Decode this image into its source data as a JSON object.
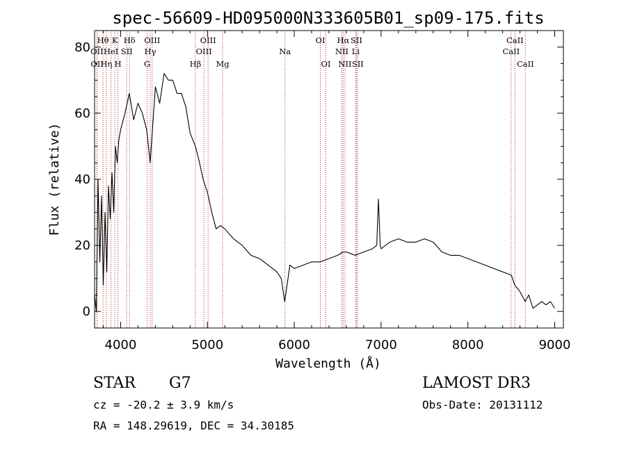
{
  "chart_data": {
    "type": "line",
    "title": "spec-56609-HD095000N333605B01_sp09-175.fits",
    "xlabel": "Wavelength (Å)",
    "ylabel": "Flux (relative)",
    "xlim": [
      3700,
      9100
    ],
    "ylim": [
      -5,
      85
    ],
    "xticks": [
      4000,
      5000,
      6000,
      7000,
      8000,
      9000
    ],
    "yticks": [
      0,
      20,
      40,
      60,
      80
    ],
    "xtick_labels": [
      "4000",
      "5000",
      "6000",
      "7000",
      "8000",
      "9000"
    ],
    "ytick_labels": [
      "0",
      "20",
      "40",
      "60",
      "80"
    ],
    "series": [
      {
        "name": "flux",
        "color": "#000000",
        "x": [
          3700,
          3720,
          3740,
          3760,
          3780,
          3800,
          3820,
          3840,
          3860,
          3880,
          3900,
          3920,
          3940,
          3960,
          3980,
          4000,
          4050,
          4100,
          4150,
          4200,
          4250,
          4300,
          4340,
          4400,
          4450,
          4500,
          4550,
          4600,
          4650,
          4700,
          4750,
          4800,
          4860,
          4900,
          4950,
          5000,
          5050,
          5100,
          5150,
          5200,
          5300,
          5400,
          5500,
          5600,
          5700,
          5800,
          5850,
          5890,
          5950,
          6000,
          6100,
          6200,
          6300,
          6400,
          6500,
          6560,
          6600,
          6700,
          6800,
          6900,
          6950,
          6970,
          6990,
          7000,
          7100,
          7200,
          7300,
          7400,
          7500,
          7600,
          7700,
          7800,
          7900,
          8000,
          8100,
          8200,
          8300,
          8400,
          8500,
          8540,
          8600,
          8660,
          8700,
          8750,
          8800,
          8850,
          8900,
          8950,
          9000
        ],
        "y": [
          5,
          0,
          40,
          15,
          35,
          8,
          30,
          12,
          38,
          28,
          42,
          30,
          50,
          45,
          52,
          55,
          60,
          66,
          58,
          63,
          60,
          55,
          45,
          68,
          63,
          72,
          70,
          70,
          66,
          66,
          62,
          54,
          50,
          46,
          40,
          36,
          30,
          25,
          26,
          25,
          22,
          20,
          17,
          16,
          14,
          12,
          10,
          3,
          14,
          13,
          14,
          15,
          15,
          16,
          17,
          18,
          18,
          17,
          18,
          19,
          20,
          34,
          20,
          19,
          21,
          22,
          21,
          21,
          22,
          21,
          18,
          17,
          17,
          16,
          15,
          14,
          13,
          12,
          11,
          8,
          6,
          3,
          5,
          1,
          2,
          3,
          2,
          3,
          1
        ]
      }
    ],
    "lines": [
      {
        "label": "Hθ",
        "x": 3797,
        "row": 0
      },
      {
        "label": "OII",
        "x": 3727,
        "row": 1
      },
      {
        "label": "OII",
        "x": 3729,
        "row": 2
      },
      {
        "label": "K",
        "x": 3934,
        "row": 0
      },
      {
        "label": "HeI",
        "x": 3889,
        "row": 1
      },
      {
        "label": "Hη",
        "x": 3835,
        "row": 2
      },
      {
        "label": "Hδ",
        "x": 4102,
        "row": 0
      },
      {
        "label": "SII",
        "x": 4070,
        "row": 1
      },
      {
        "label": "H",
        "x": 3969,
        "row": 2
      },
      {
        "label": "OIII",
        "x": 4363,
        "row": 0
      },
      {
        "label": "Hγ",
        "x": 4341,
        "row": 1
      },
      {
        "label": "G",
        "x": 4305,
        "row": 2
      },
      {
        "label": "OIII",
        "x": 5007,
        "row": 0
      },
      {
        "label": "OIII",
        "x": 4959,
        "row": 1
      },
      {
        "label": "Hβ",
        "x": 4861,
        "row": 2
      },
      {
        "label": "Mg",
        "x": 5175,
        "row": 2
      },
      {
        "label": "Na",
        "x": 5893,
        "row": 1
      },
      {
        "label": "OI",
        "x": 6300,
        "row": 0
      },
      {
        "label": "OI",
        "x": 6364,
        "row": 2
      },
      {
        "label": "Hα",
        "x": 6563,
        "row": 0
      },
      {
        "label": "SII",
        "x": 6716,
        "row": 0
      },
      {
        "label": "NII",
        "x": 6548,
        "row": 1
      },
      {
        "label": "Li",
        "x": 6708,
        "row": 1
      },
      {
        "label": "NII",
        "x": 6584,
        "row": 2
      },
      {
        "label": "SII",
        "x": 6731,
        "row": 2
      },
      {
        "label": "CaII",
        "x": 8542,
        "row": 0
      },
      {
        "label": "CaII",
        "x": 8498,
        "row": 1
      },
      {
        "label": "CaII",
        "x": 8662,
        "row": 2
      }
    ]
  },
  "info": {
    "object_class": "STAR",
    "subclass": "G7",
    "redshift": "cz = -20.2 ± 3.9 km/s",
    "coords": "RA = 148.29619, DEC =  34.30185",
    "survey": "LAMOST DR3",
    "obs_date": "Obs-Date: 20131112"
  },
  "colors": {
    "spectrum": "#000000",
    "line_marker": "#b22222",
    "background": "#ffffff"
  }
}
